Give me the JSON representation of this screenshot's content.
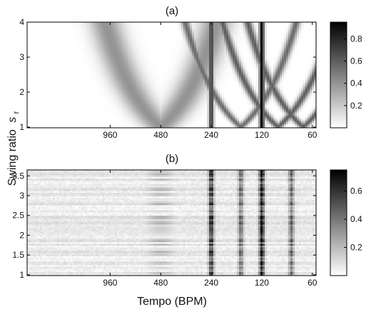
{
  "figure": {
    "ylabel_main": "Swing ratio",
    "ylabel_symbol": "s",
    "ylabel_sub": "r",
    "xlabel": "Tempo (BPM)"
  },
  "chart_data": [
    {
      "type": "heatmap",
      "panel_label": "(a)",
      "x_scale": "log-period",
      "x_tick_labels": [
        "960",
        "480",
        "240",
        "120",
        "60"
      ],
      "x_ticks": [
        960,
        480,
        240,
        120,
        60
      ],
      "xlim_bpm": [
        3000,
        57
      ],
      "ylim": [
        0.98,
        4.0
      ],
      "y_ticks": [
        1,
        2,
        3,
        4
      ],
      "y_tick_labels": [
        "1",
        "2",
        "3",
        "4"
      ],
      "colorbar": {
        "range": [
          0,
          0.95
        ],
        "ticks": [
          0.2,
          0.4,
          0.6,
          0.8
        ],
        "tick_labels": [
          "0.2",
          "0.4",
          "0.6",
          "0.8"
        ]
      },
      "colormap": [
        "#ffffff",
        "#000000"
      ],
      "features": {
        "vertical_bands_bpm": [
          {
            "bpm": 240,
            "value": 0.75
          },
          {
            "bpm": 120,
            "value": 0.95
          }
        ],
        "v_curves_vertex_bpm": [
          {
            "vertex_bpm": 480,
            "value": 0.4
          },
          {
            "vertex_bpm": 160,
            "value": 0.55
          },
          {
            "vertex_bpm": 96,
            "value": 0.6
          },
          {
            "vertex_bpm": 68,
            "value": 0.6
          }
        ]
      }
    },
    {
      "type": "heatmap",
      "panel_label": "(b)",
      "x_scale": "log-period",
      "x_tick_labels": [
        "960",
        "480",
        "240",
        "120",
        "60"
      ],
      "x_ticks": [
        960,
        480,
        240,
        120,
        60
      ],
      "xlim_bpm": [
        3000,
        57
      ],
      "ylim": [
        0.98,
        3.65
      ],
      "y_ticks": [
        1,
        1.5,
        2,
        2.5,
        3,
        3.5
      ],
      "y_tick_labels": [
        "1",
        "1.5",
        "2",
        "2.5",
        "3",
        "3.5"
      ],
      "colorbar": {
        "range": [
          0,
          0.75
        ],
        "ticks": [
          0.2,
          0.4,
          0.6
        ],
        "tick_labels": [
          "0.2",
          "0.4",
          "0.6"
        ]
      },
      "colormap": [
        "#ffffff",
        "#000000"
      ],
      "features": {
        "vertical_bands_bpm": [
          {
            "bpm": 240,
            "value": 0.6
          },
          {
            "bpm": 120,
            "value": 0.72
          },
          {
            "bpm": 160,
            "value": 0.4
          },
          {
            "bpm": 80,
            "value": 0.4
          }
        ],
        "horizontal_noise": true
      }
    }
  ]
}
